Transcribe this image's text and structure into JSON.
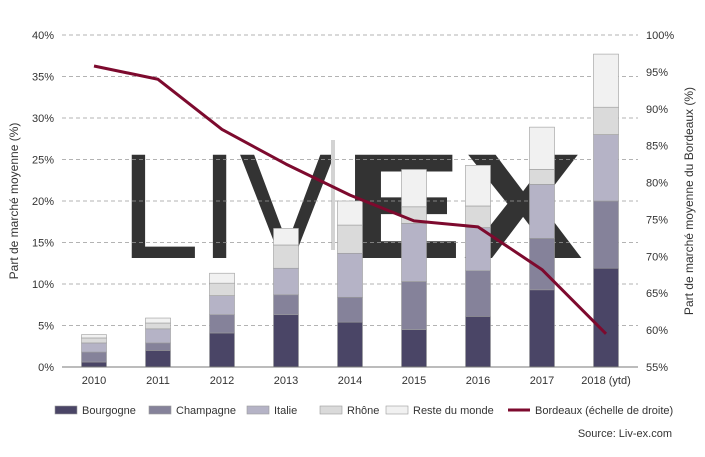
{
  "chart_data": {
    "type": "bar",
    "stacked": true,
    "watermark": "LIV-EX",
    "categories": [
      "2010",
      "2011",
      "2012",
      "2013",
      "2014",
      "2015",
      "2016",
      "2017",
      "2018 (ytd)"
    ],
    "ylabel": "Part de marché moyenne (%)",
    "ylabel_right": "Part de marché moyenne du Bordeaux (%)",
    "ylim": [
      0,
      40
    ],
    "ylim_right": [
      55,
      100
    ],
    "yticks": [
      "0%",
      "5%",
      "10%",
      "15%",
      "20%",
      "25%",
      "30%",
      "35%",
      "40%"
    ],
    "yticks_right": [
      "55%",
      "60%",
      "65%",
      "70%",
      "75%",
      "80%",
      "85%",
      "90%",
      "95%",
      "100%"
    ],
    "grid": true,
    "legend_position": "bottom",
    "source": "Source: Liv-ex.com",
    "series": [
      {
        "name": "Bourgogne",
        "color": "#4a4566",
        "values": [
          0.6,
          2.0,
          4.1,
          6.3,
          5.4,
          4.5,
          6.1,
          9.3,
          11.9
        ]
      },
      {
        "name": "Champagne",
        "color": "#85829a",
        "values": [
          1.2,
          0.9,
          2.2,
          2.4,
          3.0,
          5.8,
          5.5,
          6.2,
          8.1
        ]
      },
      {
        "name": "Italie",
        "color": "#b5b3c6",
        "values": [
          1.1,
          1.7,
          2.3,
          3.2,
          5.3,
          7.0,
          5.2,
          6.5,
          8.0
        ]
      },
      {
        "name": "Rhône",
        "color": "#dadada",
        "values": [
          0.6,
          0.7,
          1.5,
          2.8,
          3.4,
          2.0,
          2.6,
          1.8,
          3.3
        ]
      },
      {
        "name": "Reste du monde",
        "color": "#f1f1f1",
        "values": [
          0.4,
          0.6,
          1.2,
          2.0,
          2.9,
          4.5,
          4.9,
          5.1,
          6.4
        ]
      }
    ],
    "line_series": {
      "name": "Bordeaux (échelle de droite)",
      "color": "#7d0a2e",
      "axis": "right",
      "values": [
        95.8,
        94.0,
        87.2,
        82.5,
        78.3,
        74.8,
        74.0,
        68.2,
        59.5
      ]
    }
  }
}
